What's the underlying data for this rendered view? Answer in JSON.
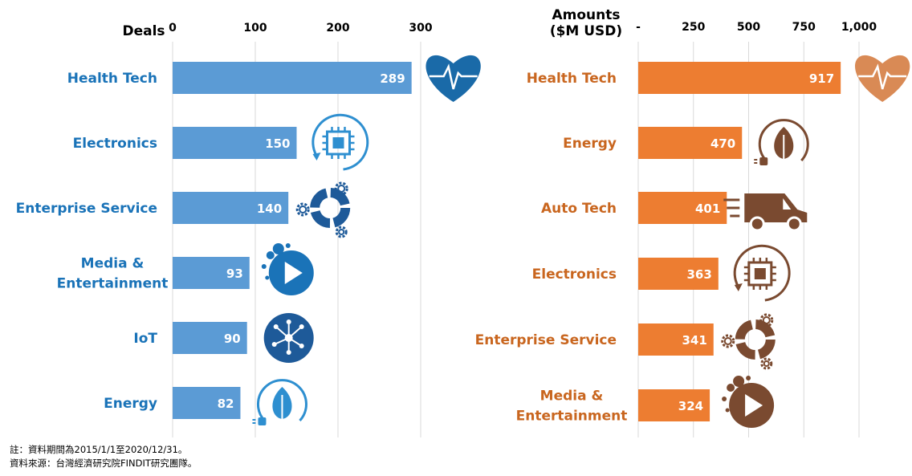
{
  "chart_data": [
    {
      "type": "bar",
      "orientation": "horizontal",
      "axis_title": "Deals",
      "ticks": [
        "0",
        "100",
        "200",
        "300"
      ],
      "xlim": [
        0,
        300
      ],
      "grid": true,
      "color": "#5b9bd5",
      "label_color": "#1a73b8",
      "categories": [
        [
          "Health Tech"
        ],
        [
          "Electronics"
        ],
        [
          "Enterprise Service"
        ],
        [
          "Media &",
          "Entertainment"
        ],
        [
          "IoT"
        ],
        [
          "Energy"
        ]
      ],
      "icons": [
        "heart-pulse-icon",
        "chip-icon",
        "gears-icon",
        "play-icon",
        "iot-network-icon",
        "leaf-plug-icon"
      ],
      "values": [
        289,
        150,
        140,
        93,
        90,
        82
      ]
    },
    {
      "type": "bar",
      "orientation": "horizontal",
      "axis_title": [
        "Amounts",
        "($M USD)"
      ],
      "ticks": [
        "-",
        "250",
        "500",
        "750",
        "1,000"
      ],
      "xlim": [
        0,
        1000
      ],
      "grid": true,
      "color": "#ed7d31",
      "label_color": "#c9661f",
      "categories": [
        [
          "Health Tech"
        ],
        [
          "Energy"
        ],
        [
          "Auto Tech"
        ],
        [
          "Electronics"
        ],
        [
          "Enterprise Service"
        ],
        [
          "Media &",
          "Entertainment"
        ]
      ],
      "icons": [
        "heart-pulse-icon",
        "leaf-plug-icon",
        "van-icon",
        "chip-icon",
        "gears-icon",
        "play-icon"
      ],
      "values": [
        917,
        470,
        401,
        363,
        341,
        324
      ]
    }
  ],
  "notes": [
    "註：資料期間為2015/1/1至2020/12/31。",
    "資料來源：台灣經濟研究院FINDIT研究團隊。"
  ]
}
